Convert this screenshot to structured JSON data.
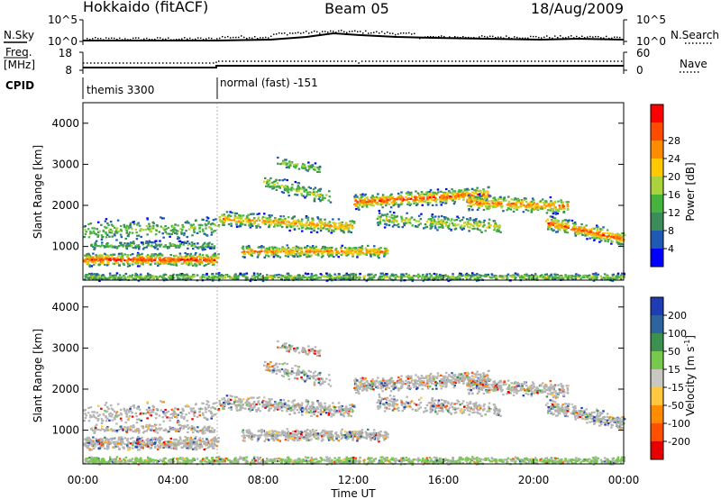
{
  "header": {
    "station": "Hokkaido (fitACF)",
    "beam": "Beam 05",
    "date": "18/Aug/2009"
  },
  "top_panels": {
    "nsky_label": "N.Sky",
    "nsky_ticks": [
      "10^5",
      "10^0"
    ],
    "nsearch_label": "N.Search",
    "nsearch_ticks": [
      "10^5",
      "10^0"
    ],
    "freq_label": "Freq.",
    "freq_unit": "[MHz]",
    "freq_ticks": [
      "18",
      "8"
    ],
    "nave_label": "Nave",
    "nave_ticks": [
      "60",
      "0"
    ],
    "cpid_label": "CPID",
    "cpid_segments": [
      {
        "label": "themis 3300",
        "start_hour": 0
      },
      {
        "label": "normal (fast) -151",
        "start_hour": 6
      }
    ]
  },
  "chart_data": [
    {
      "type": "heatmap",
      "name": "power",
      "ylabel": "Slant Range [km]",
      "yticks": [
        "1000",
        "2000",
        "3000",
        "4000"
      ],
      "ylim": [
        180,
        4500
      ],
      "xlim": [
        0,
        24
      ],
      "colorbar_label": "Power [dB]",
      "colorbar_ticks": [
        "4",
        "8",
        "12",
        "16",
        "20",
        "24",
        "28"
      ],
      "colorscale": [
        "#0000ff",
        "#1e5ab4",
        "#3c8c5a",
        "#46b43c",
        "#aad23c",
        "#ffc800",
        "#ff8c00",
        "#ff4b00",
        "#ff0000"
      ]
    },
    {
      "type": "heatmap",
      "name": "velocity",
      "ylabel": "Slant Range [km]",
      "yticks": [
        "1000",
        "2000",
        "3000",
        "4000"
      ],
      "ylim": [
        180,
        4500
      ],
      "xlim": [
        0,
        24
      ],
      "xlabel": "Time UT",
      "xticks": [
        "00:00",
        "04:00",
        "08:00",
        "12:00",
        "16:00",
        "20:00",
        "00:00"
      ],
      "colorbar_label": "Velocity [m s",
      "colorbar_label_sup": "-1",
      "colorbar_label_end": "]",
      "colorbar_ticks": [
        "200",
        "100",
        "50",
        "15",
        "-15",
        "-50",
        "-100",
        "-200"
      ],
      "colorscale": [
        "#1e3cb4",
        "#2d64a0",
        "#3c9150",
        "#78c850",
        "#c8c8c0",
        "#ffc840",
        "#ff8c00",
        "#ff5000",
        "#e60000"
      ],
      "ground_scatter_color": "#b4b4b4"
    }
  ]
}
